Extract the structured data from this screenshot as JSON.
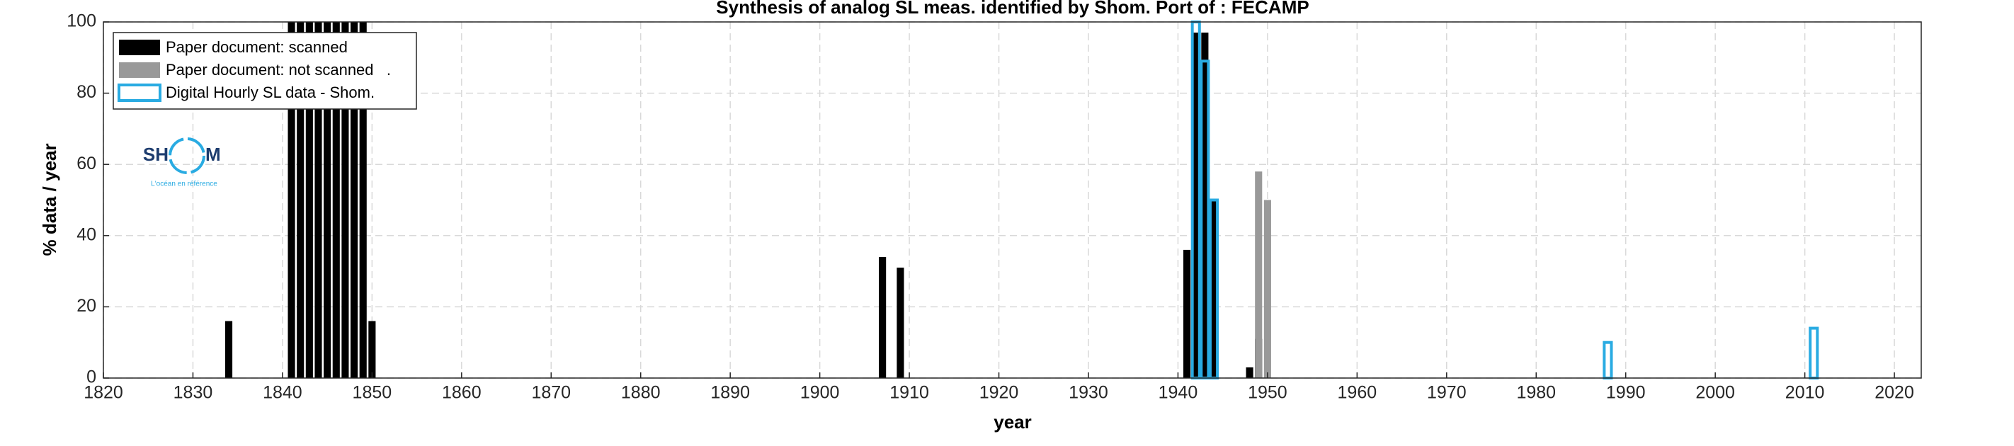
{
  "chart_data": {
    "type": "bar",
    "title": "Synthesis of analog SL meas. identified by Shom. Port of : FECAMP",
    "x_label": "year",
    "y_label": "% data / year",
    "xlim": [
      1820,
      2023
    ],
    "xticks": [
      1820,
      1830,
      1840,
      1850,
      1860,
      1870,
      1880,
      1890,
      1900,
      1910,
      1920,
      1930,
      1940,
      1950,
      1960,
      1970,
      1980,
      1990,
      2000,
      2010,
      2020
    ],
    "ylim": [
      0,
      100
    ],
    "yticks": [
      0,
      20,
      40,
      60,
      80,
      100
    ],
    "grid": true,
    "legend": "upper-left",
    "series": [
      {
        "name": "Paper document: scanned",
        "color": "#000000",
        "style": "filled",
        "x": [
          1834,
          1841,
          1842,
          1843,
          1844,
          1845,
          1846,
          1847,
          1848,
          1849,
          1850,
          1907,
          1909,
          1941,
          1942,
          1943,
          1944,
          1948,
          1949
        ],
        "values": [
          16,
          100,
          100,
          100,
          100,
          100,
          100,
          100,
          100,
          100,
          16,
          34,
          31,
          36,
          97,
          97,
          50,
          3,
          11
        ]
      },
      {
        "name": "Paper document: not scanned   .",
        "color": "#999999",
        "style": "filled",
        "x": [
          1949,
          1950
        ],
        "values": [
          58,
          50
        ]
      },
      {
        "name": "Digital Hourly SL data - Shom.",
        "color": "#29abe2",
        "style": "outline",
        "x": [
          1942,
          1943,
          1944,
          1988,
          2011
        ],
        "values": [
          100,
          89,
          50,
          10,
          14
        ]
      }
    ]
  },
  "logo": {
    "left": "SH",
    "right": "M",
    "tagline": "L'océan en référence"
  }
}
